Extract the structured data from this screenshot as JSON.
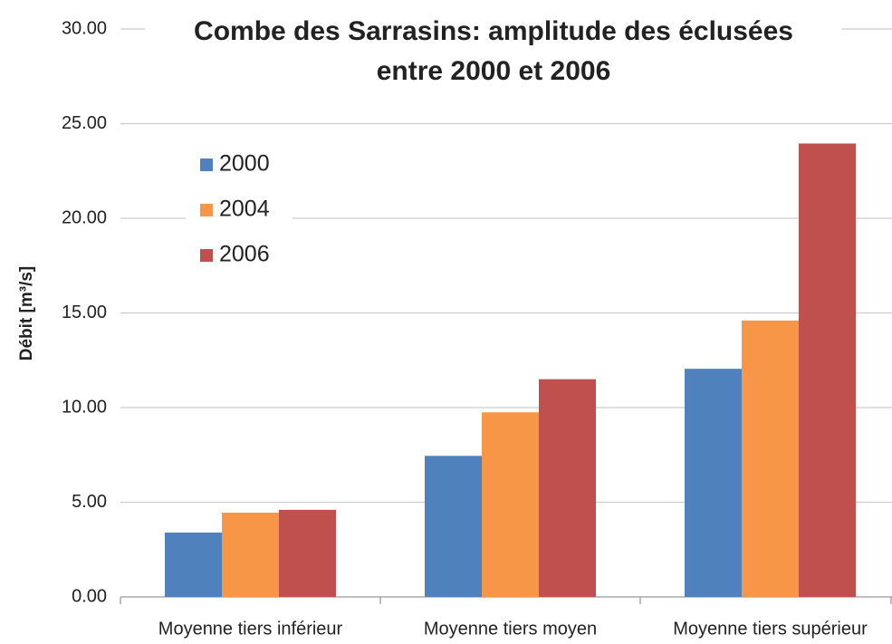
{
  "chart_data": {
    "type": "bar",
    "title": [
      "Combe des Sarrasins: amplitude des éclusées",
      "entre 2000 et 2006"
    ],
    "y_label": "Débit [m³/s]",
    "categories": [
      "Moyenne tiers inférieur",
      "Moyenne tiers moyen",
      "Moyenne tiers supérieur"
    ],
    "series": [
      {
        "name": "2000",
        "color": "#4f81bd",
        "values": [
          3.4,
          7.45,
          12.05
        ]
      },
      {
        "name": "2004",
        "color": "#f79646",
        "values": [
          4.45,
          9.75,
          14.6
        ]
      },
      {
        "name": "2006",
        "color": "#c0504d",
        "values": [
          4.6,
          11.5,
          23.95
        ]
      }
    ],
    "ylim": [
      0,
      30
    ],
    "yticks": [
      {
        "value": 0,
        "label": "0.00"
      },
      {
        "value": 5,
        "label": "5.00"
      },
      {
        "value": 10,
        "label": "10.00"
      },
      {
        "value": 15,
        "label": "15.00"
      },
      {
        "value": 20,
        "label": "20.00"
      },
      {
        "value": 25,
        "label": "25.00"
      },
      {
        "value": 30,
        "label": "30.00"
      }
    ],
    "grid": true,
    "legend": "upper left"
  }
}
